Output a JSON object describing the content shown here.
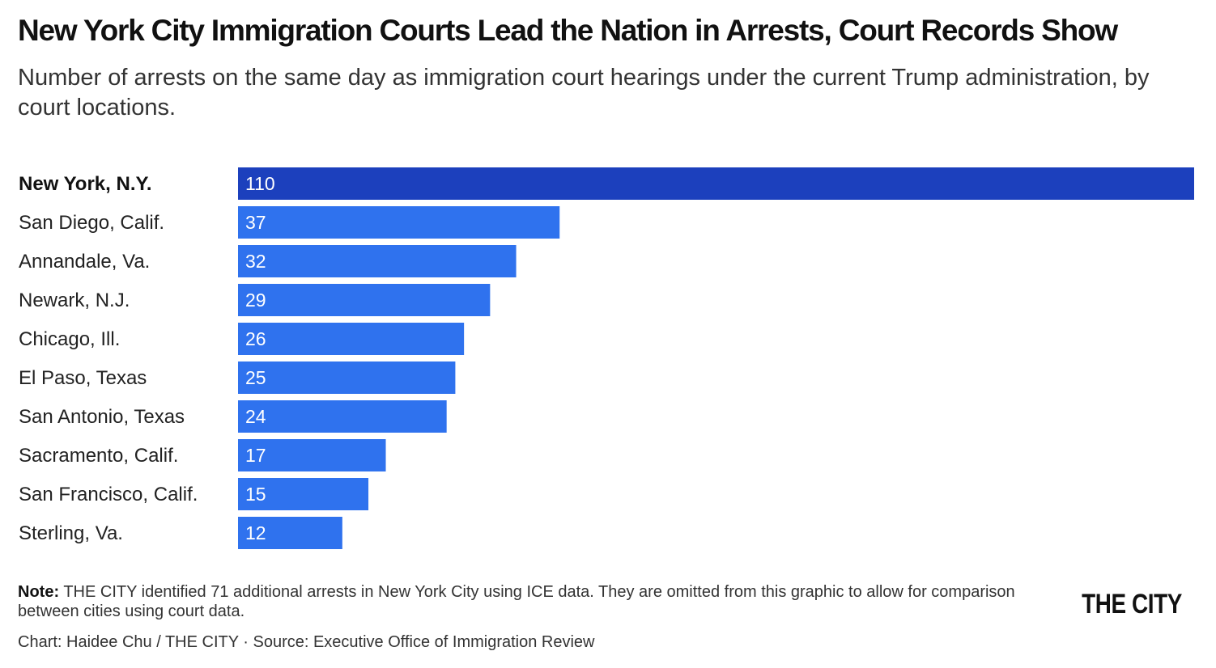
{
  "title": "New York City Immigration Courts Lead the Nation in Arrests, Court Records Show",
  "subtitle": "Number of arrests on the same day as immigration court hearings under the current Trump administration, by court locations.",
  "note_label": "Note:",
  "note_text": "THE CITY identified 71 additional arrests in New York City using ICE data. They are omitted from this graphic to allow for comparison between cities using court data.",
  "credit": "Chart: Haidee Chu / THE CITY · Source: Executive Office of Immigration Review",
  "logo": "THE CITY",
  "colors": {
    "highlight_bar": "#1c40bd",
    "bar": "#2f72ee",
    "bar_label": "#ffffff"
  },
  "chart_data": {
    "type": "bar",
    "orientation": "horizontal",
    "title": "New York City Immigration Courts Lead the Nation in Arrests, Court Records Show",
    "categories": [
      "New York, N.Y.",
      "San Diego, Calif.",
      "Annandale, Va.",
      "Newark, N.J.",
      "Chicago, Ill.",
      "El Paso, Texas",
      "San Antonio, Texas",
      "Sacramento, Calif.",
      "San Francisco, Calif.",
      "Sterling, Va."
    ],
    "values": [
      110,
      37,
      32,
      29,
      26,
      25,
      24,
      17,
      15,
      12
    ],
    "highlighted": [
      "New York, N.Y."
    ],
    "xlim": [
      0,
      110
    ],
    "grid": false,
    "legend": "none"
  }
}
